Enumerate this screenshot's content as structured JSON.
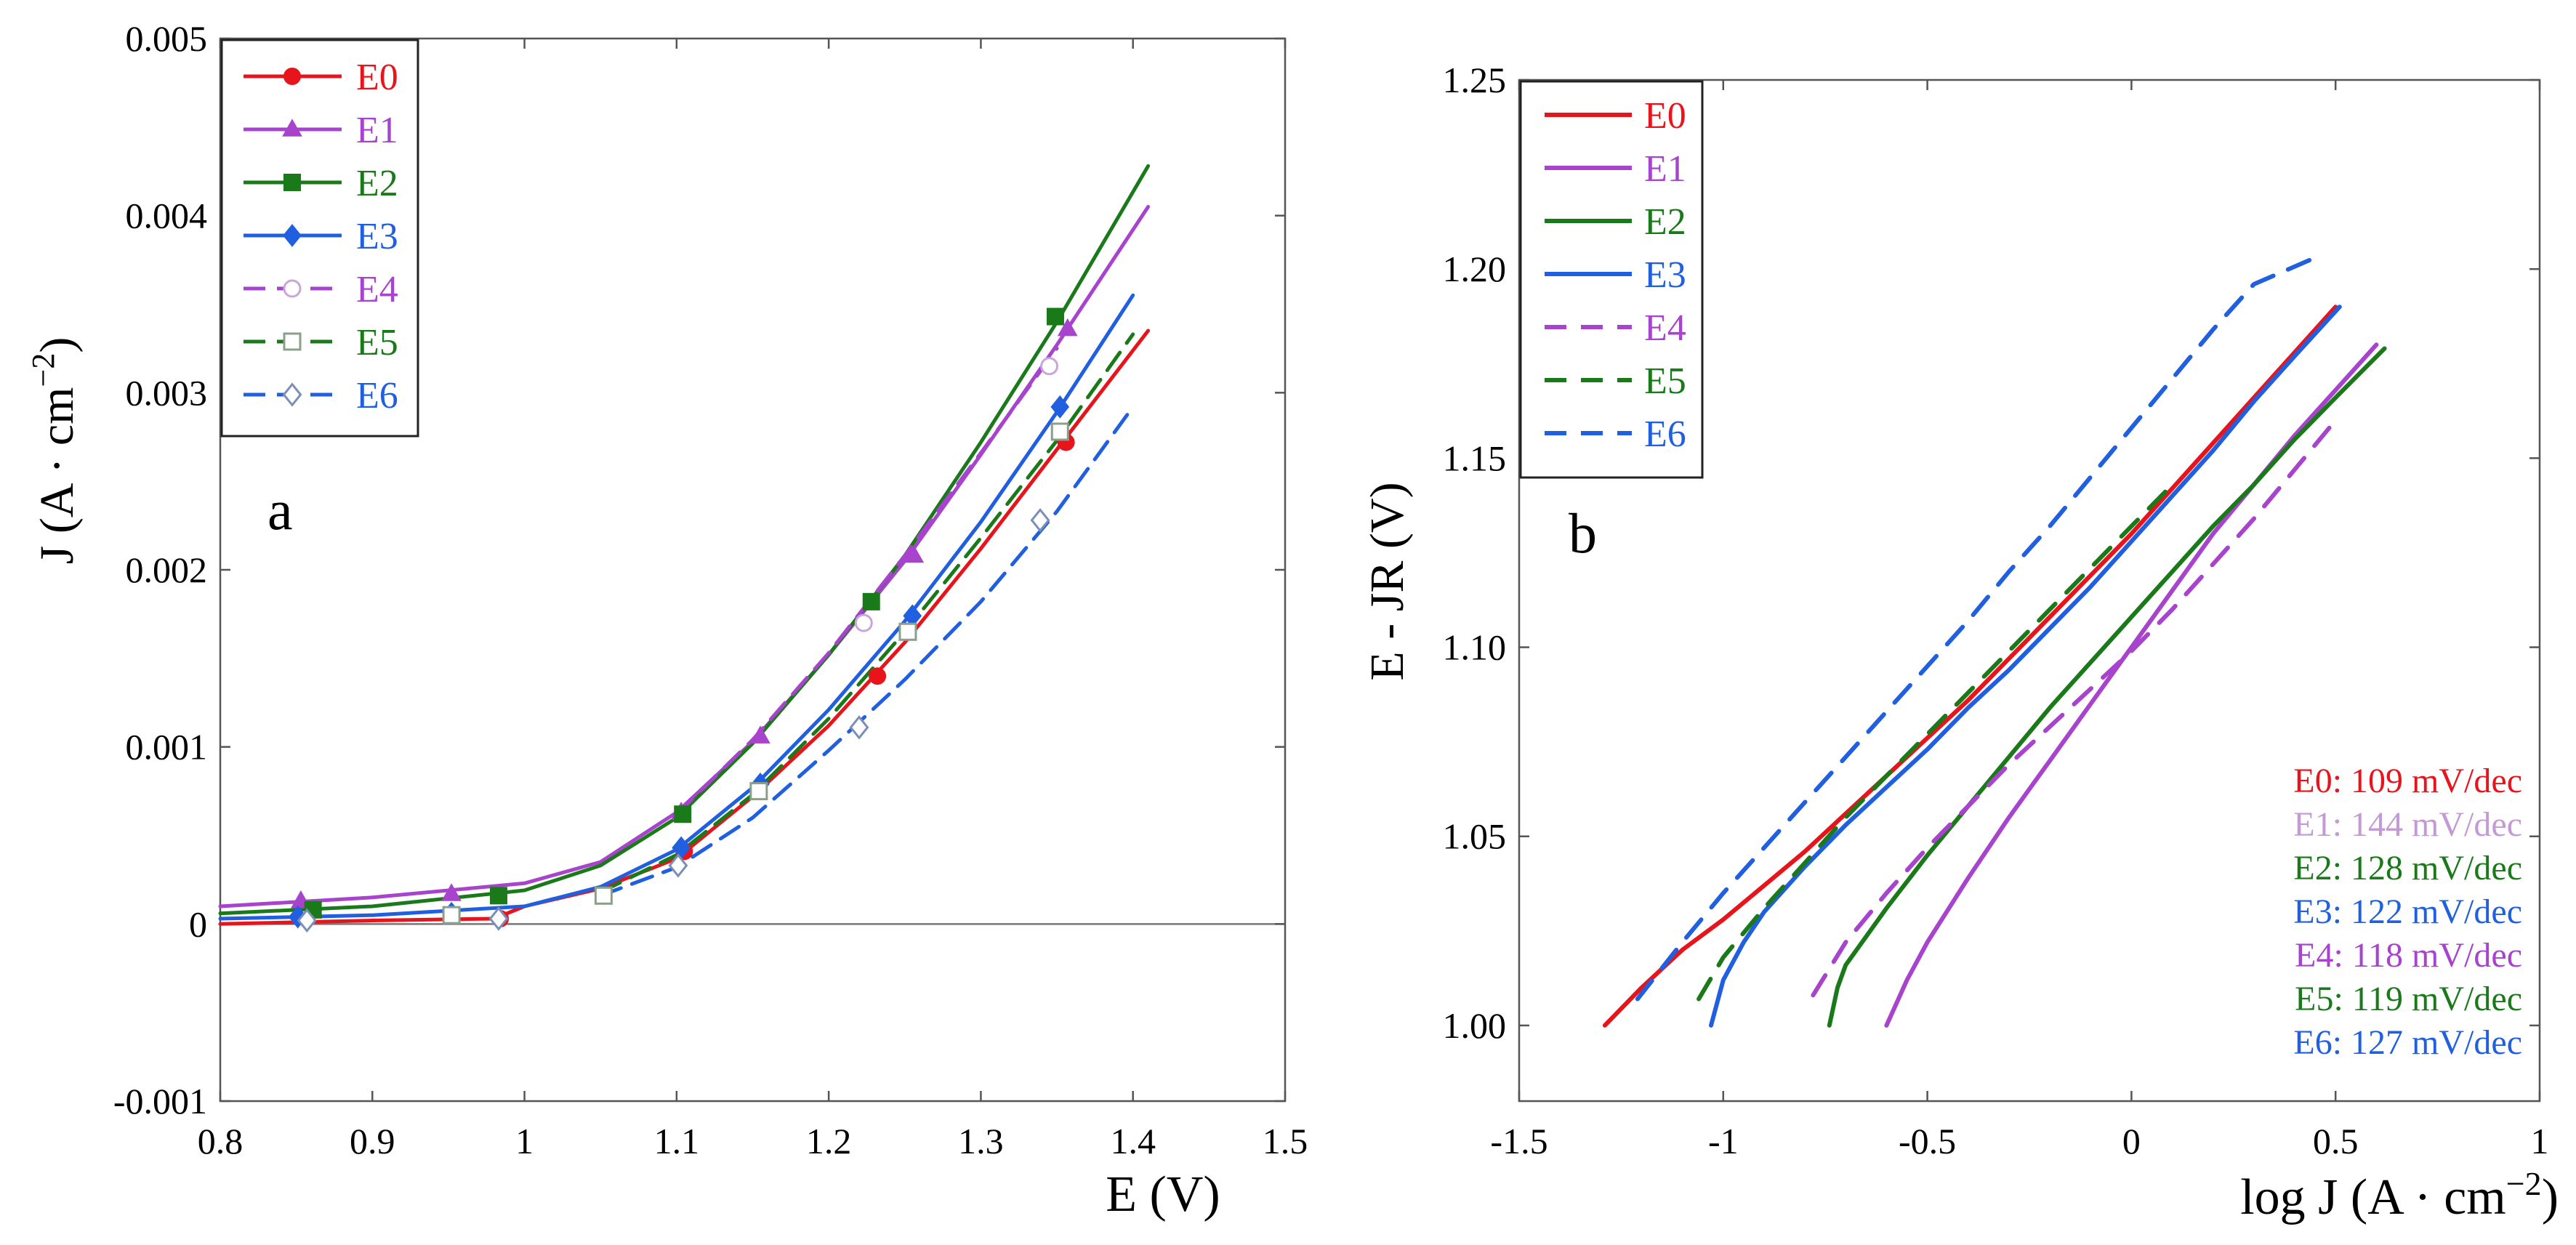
{
  "chart_data": [
    {
      "type": "line",
      "panel_label": "a",
      "xlabel": "E (V)",
      "ylabel_parts": [
        "J (A ",
        "·",
        " cm",
        "−2",
        ")"
      ],
      "xlim": [
        0.8,
        1.5
      ],
      "ylim": [
        -0.001,
        0.005
      ],
      "x_ticks": [
        0.8,
        0.9,
        1,
        1.1,
        1.2,
        1.3,
        1.4,
        1.5
      ],
      "x_tick_labels": [
        "0.8",
        "0.9",
        "1",
        "1.1",
        "1.2",
        "1.3",
        "1.4",
        "1.5"
      ],
      "y_ticks": [
        -0.001,
        0,
        0.001,
        0.002,
        0.003,
        0.004,
        0.005
      ],
      "y_tick_labels": [
        "-0.001",
        "0",
        "0.001",
        "0.002",
        "0.003",
        "0.004",
        "0.005"
      ],
      "legend_position": "top-left",
      "series": [
        {
          "name": "E0",
          "color": "#e8141c",
          "dash": "solid",
          "marker": "circle",
          "filled": true,
          "x": [
            0.8,
            0.9,
            0.98,
            1.0,
            1.05,
            1.1,
            1.15,
            1.2,
            1.25,
            1.3,
            1.35,
            1.41
          ],
          "y": [
            0.0,
            2e-05,
            3e-05,
            0.0001,
            0.0002,
            0.00037,
            0.00072,
            0.00112,
            0.00159,
            0.00212,
            0.00268,
            0.00335
          ],
          "marker_x": [
            0.984,
            1.105,
            1.232,
            1.356
          ],
          "marker_y": [
            3e-05,
            0.00041,
            0.0014,
            0.00272
          ]
        },
        {
          "name": "E1",
          "color": "#a743cc",
          "dash": "solid",
          "marker": "triangle",
          "filled": true,
          "x": [
            0.8,
            0.9,
            1.0,
            1.05,
            1.1,
            1.15,
            1.2,
            1.25,
            1.3,
            1.35,
            1.41
          ],
          "y": [
            0.0001,
            0.00015,
            0.00023,
            0.00035,
            0.00063,
            0.00103,
            0.00152,
            0.00205,
            0.00265,
            0.00327,
            0.00405
          ],
          "marker_x": [
            0.853,
            0.952,
            1.103,
            1.155,
            1.256,
            1.357
          ],
          "marker_y": [
            0.00013,
            0.00017,
            0.00063,
            0.00106,
            0.00208,
            0.00336
          ]
        },
        {
          "name": "E2",
          "color": "#1a7a1a",
          "dash": "solid",
          "marker": "square",
          "filled": true,
          "x": [
            0.8,
            0.9,
            1.0,
            1.05,
            1.1,
            1.15,
            1.2,
            1.25,
            1.3,
            1.35,
            1.41
          ],
          "y": [
            6e-05,
            0.0001,
            0.00019,
            0.00033,
            0.0006,
            0.00102,
            0.00152,
            0.00208,
            0.00272,
            0.0034,
            0.00428
          ],
          "marker_x": [
            0.861,
            0.983,
            1.104,
            1.228,
            1.349
          ],
          "marker_y": [
            8e-05,
            0.00016,
            0.00062,
            0.00182,
            0.00343
          ]
        },
        {
          "name": "E3",
          "color": "#1f5fe0",
          "dash": "solid",
          "marker": "diamond",
          "filled": true,
          "x": [
            0.8,
            0.9,
            1.0,
            1.05,
            1.1,
            1.15,
            1.2,
            1.25,
            1.3,
            1.35,
            1.4
          ],
          "y": [
            3e-05,
            5e-05,
            0.0001,
            0.00021,
            0.00042,
            0.00077,
            0.00121,
            0.00171,
            0.00227,
            0.00289,
            0.00355
          ],
          "marker_x": [
            0.851,
            0.952,
            1.103,
            1.155,
            1.255,
            1.352
          ],
          "marker_y": [
            4e-05,
            6e-05,
            0.00043,
            0.00079,
            0.00174,
            0.00292
          ]
        },
        {
          "name": "E4",
          "color": "#a743cc",
          "dash": "dash",
          "marker": "circle",
          "filled": false,
          "x": [
            1.1,
            1.15,
            1.2,
            1.25,
            1.3,
            1.35
          ],
          "y": [
            0.00062,
            0.00104,
            0.00153,
            0.00208,
            0.00266,
            0.00325
          ],
          "marker_x": [
            1.223,
            1.345
          ],
          "marker_y": [
            0.0017,
            0.00315
          ]
        },
        {
          "name": "E5",
          "color": "#1a7a1a",
          "dash": "dash",
          "marker": "square",
          "filled": false,
          "x": [
            1.05,
            1.1,
            1.15,
            1.2,
            1.25,
            1.3,
            1.35,
            1.4
          ],
          "y": [
            0.00018,
            0.00039,
            0.00073,
            0.00116,
            0.00165,
            0.00218,
            0.00273,
            0.00333
          ],
          "marker_x": [
            0.952,
            1.052,
            1.154,
            1.252,
            1.352
          ],
          "marker_y": [
            5e-05,
            0.00016,
            0.00075,
            0.00165,
            0.00278
          ]
        },
        {
          "name": "E6",
          "color": "#1f5fe0",
          "dash": "dash",
          "marker": "diamond",
          "filled": false,
          "x": [
            1.05,
            1.1,
            1.15,
            1.2,
            1.25,
            1.3,
            1.35,
            1.4
          ],
          "y": [
            0.00016,
            0.00032,
            0.0006,
            0.00098,
            0.00138,
            0.00182,
            0.00233,
            0.00292
          ],
          "marker_x": [
            0.857,
            0.983,
            1.101,
            1.22,
            1.339
          ],
          "marker_y": [
            2e-05,
            3e-05,
            0.00033,
            0.00111,
            0.00228
          ]
        }
      ]
    },
    {
      "type": "line",
      "panel_label": "b",
      "xlabel_parts": [
        "log J (A ",
        "·",
        " cm",
        "−2",
        ")"
      ],
      "ylabel": "E - JR (V)",
      "xlim": [
        -1.5,
        1
      ],
      "ylim": [
        0.98,
        1.25
      ],
      "x_ticks": [
        -1.5,
        -1,
        -0.5,
        0,
        0.5,
        1
      ],
      "x_tick_labels": [
        "-1.5",
        "-1",
        "-0.5",
        "0",
        "0.5",
        "1"
      ],
      "y_ticks": [
        1.0,
        1.05,
        1.1,
        1.15,
        1.2,
        1.25
      ],
      "y_tick_labels": [
        "1.00",
        "1.05",
        "1.10",
        "1.15",
        "1.20",
        "1.25"
      ],
      "legend_position": "top-left",
      "series": [
        {
          "name": "E0",
          "color": "#e8141c",
          "dash": "solid",
          "x": [
            -1.29,
            -1.2,
            -1.1,
            -1.0,
            -0.9,
            -0.8,
            -0.7,
            -0.6,
            -0.5,
            -0.4,
            -0.3,
            -0.2,
            -0.1,
            0.0,
            0.1,
            0.2,
            0.3,
            0.4,
            0.5
          ],
          "y": [
            1.0,
            1.01,
            1.02,
            1.028,
            1.037,
            1.046,
            1.056,
            1.066,
            1.076,
            1.086,
            1.097,
            1.108,
            1.119,
            1.13,
            1.142,
            1.154,
            1.166,
            1.178,
            1.19
          ]
        },
        {
          "name": "E1",
          "color": "#a743cc",
          "dash": "solid",
          "x": [
            -0.6,
            -0.55,
            -0.5,
            -0.4,
            -0.3,
            -0.2,
            -0.1,
            0.0,
            0.1,
            0.2,
            0.3,
            0.4,
            0.5,
            0.6
          ],
          "y": [
            1.0,
            1.012,
            1.022,
            1.039,
            1.055,
            1.07,
            1.085,
            1.1,
            1.115,
            1.13,
            1.143,
            1.156,
            1.168,
            1.18
          ]
        },
        {
          "name": "E2",
          "color": "#1a7a1a",
          "dash": "solid",
          "x": [
            -0.74,
            -0.72,
            -0.7,
            -0.6,
            -0.5,
            -0.4,
            -0.3,
            -0.2,
            -0.1,
            0.0,
            0.1,
            0.2,
            0.3,
            0.4,
            0.5,
            0.62
          ],
          "y": [
            1.0,
            1.01,
            1.016,
            1.031,
            1.045,
            1.058,
            1.071,
            1.084,
            1.096,
            1.108,
            1.12,
            1.132,
            1.143,
            1.155,
            1.166,
            1.179
          ]
        },
        {
          "name": "E3",
          "color": "#1f5fe0",
          "dash": "solid",
          "x": [
            -1.03,
            -1.0,
            -0.95,
            -0.9,
            -0.8,
            -0.7,
            -0.6,
            -0.5,
            -0.4,
            -0.3,
            -0.2,
            -0.1,
            0.0,
            0.1,
            0.2,
            0.3,
            0.4,
            0.51
          ],
          "y": [
            1.0,
            1.012,
            1.022,
            1.03,
            1.042,
            1.053,
            1.063,
            1.073,
            1.084,
            1.094,
            1.105,
            1.116,
            1.128,
            1.14,
            1.152,
            1.165,
            1.177,
            1.19
          ]
        },
        {
          "name": "E4",
          "color": "#a743cc",
          "dash": "dash",
          "x": [
            -0.78,
            -0.7,
            -0.6,
            -0.5,
            -0.4,
            -0.3,
            -0.2,
            -0.1,
            0.0,
            0.1,
            0.2,
            0.3,
            0.4,
            0.5
          ],
          "y": [
            1.008,
            1.022,
            1.035,
            1.047,
            1.058,
            1.069,
            1.079,
            1.089,
            1.099,
            1.11,
            1.122,
            1.134,
            1.147,
            1.16
          ]
        },
        {
          "name": "E5",
          "color": "#1a7a1a",
          "dash": "dash",
          "x": [
            -1.06,
            -1.0,
            -0.9,
            -0.8,
            -0.7,
            -0.6,
            -0.5,
            -0.4,
            -0.3,
            -0.2,
            -0.1,
            0.0,
            0.1
          ],
          "y": [
            1.007,
            1.018,
            1.031,
            1.043,
            1.055,
            1.066,
            1.077,
            1.088,
            1.099,
            1.11,
            1.121,
            1.132,
            1.143
          ]
        },
        {
          "name": "E6",
          "color": "#1f5fe0",
          "dash": "dash",
          "x": [
            -1.21,
            -1.1,
            -1.0,
            -0.9,
            -0.8,
            -0.7,
            -0.6,
            -0.5,
            -0.4,
            -0.3,
            -0.2,
            -0.1,
            0.0,
            0.1,
            0.2,
            0.3,
            0.45
          ],
          "y": [
            1.007,
            1.022,
            1.035,
            1.047,
            1.059,
            1.071,
            1.083,
            1.095,
            1.107,
            1.12,
            1.132,
            1.145,
            1.158,
            1.171,
            1.184,
            1.196,
            1.203
          ]
        }
      ],
      "annotations": [
        {
          "text": "E0: 109 mV/dec",
          "color": "#e8141c"
        },
        {
          "text": "E1: 144 mV/dec",
          "color": "#c39ad6"
        },
        {
          "text": "E2: 128 mV/dec",
          "color": "#1a7a1a"
        },
        {
          "text": "E3: 122 mV/dec",
          "color": "#1f5fe0"
        },
        {
          "text": "E4: 118 mV/dec",
          "color": "#a743cc"
        },
        {
          "text": "E5: 119 mV/dec",
          "color": "#1a7a1a"
        },
        {
          "text": "E6: 127 mV/dec",
          "color": "#1f5fe0"
        }
      ]
    }
  ]
}
